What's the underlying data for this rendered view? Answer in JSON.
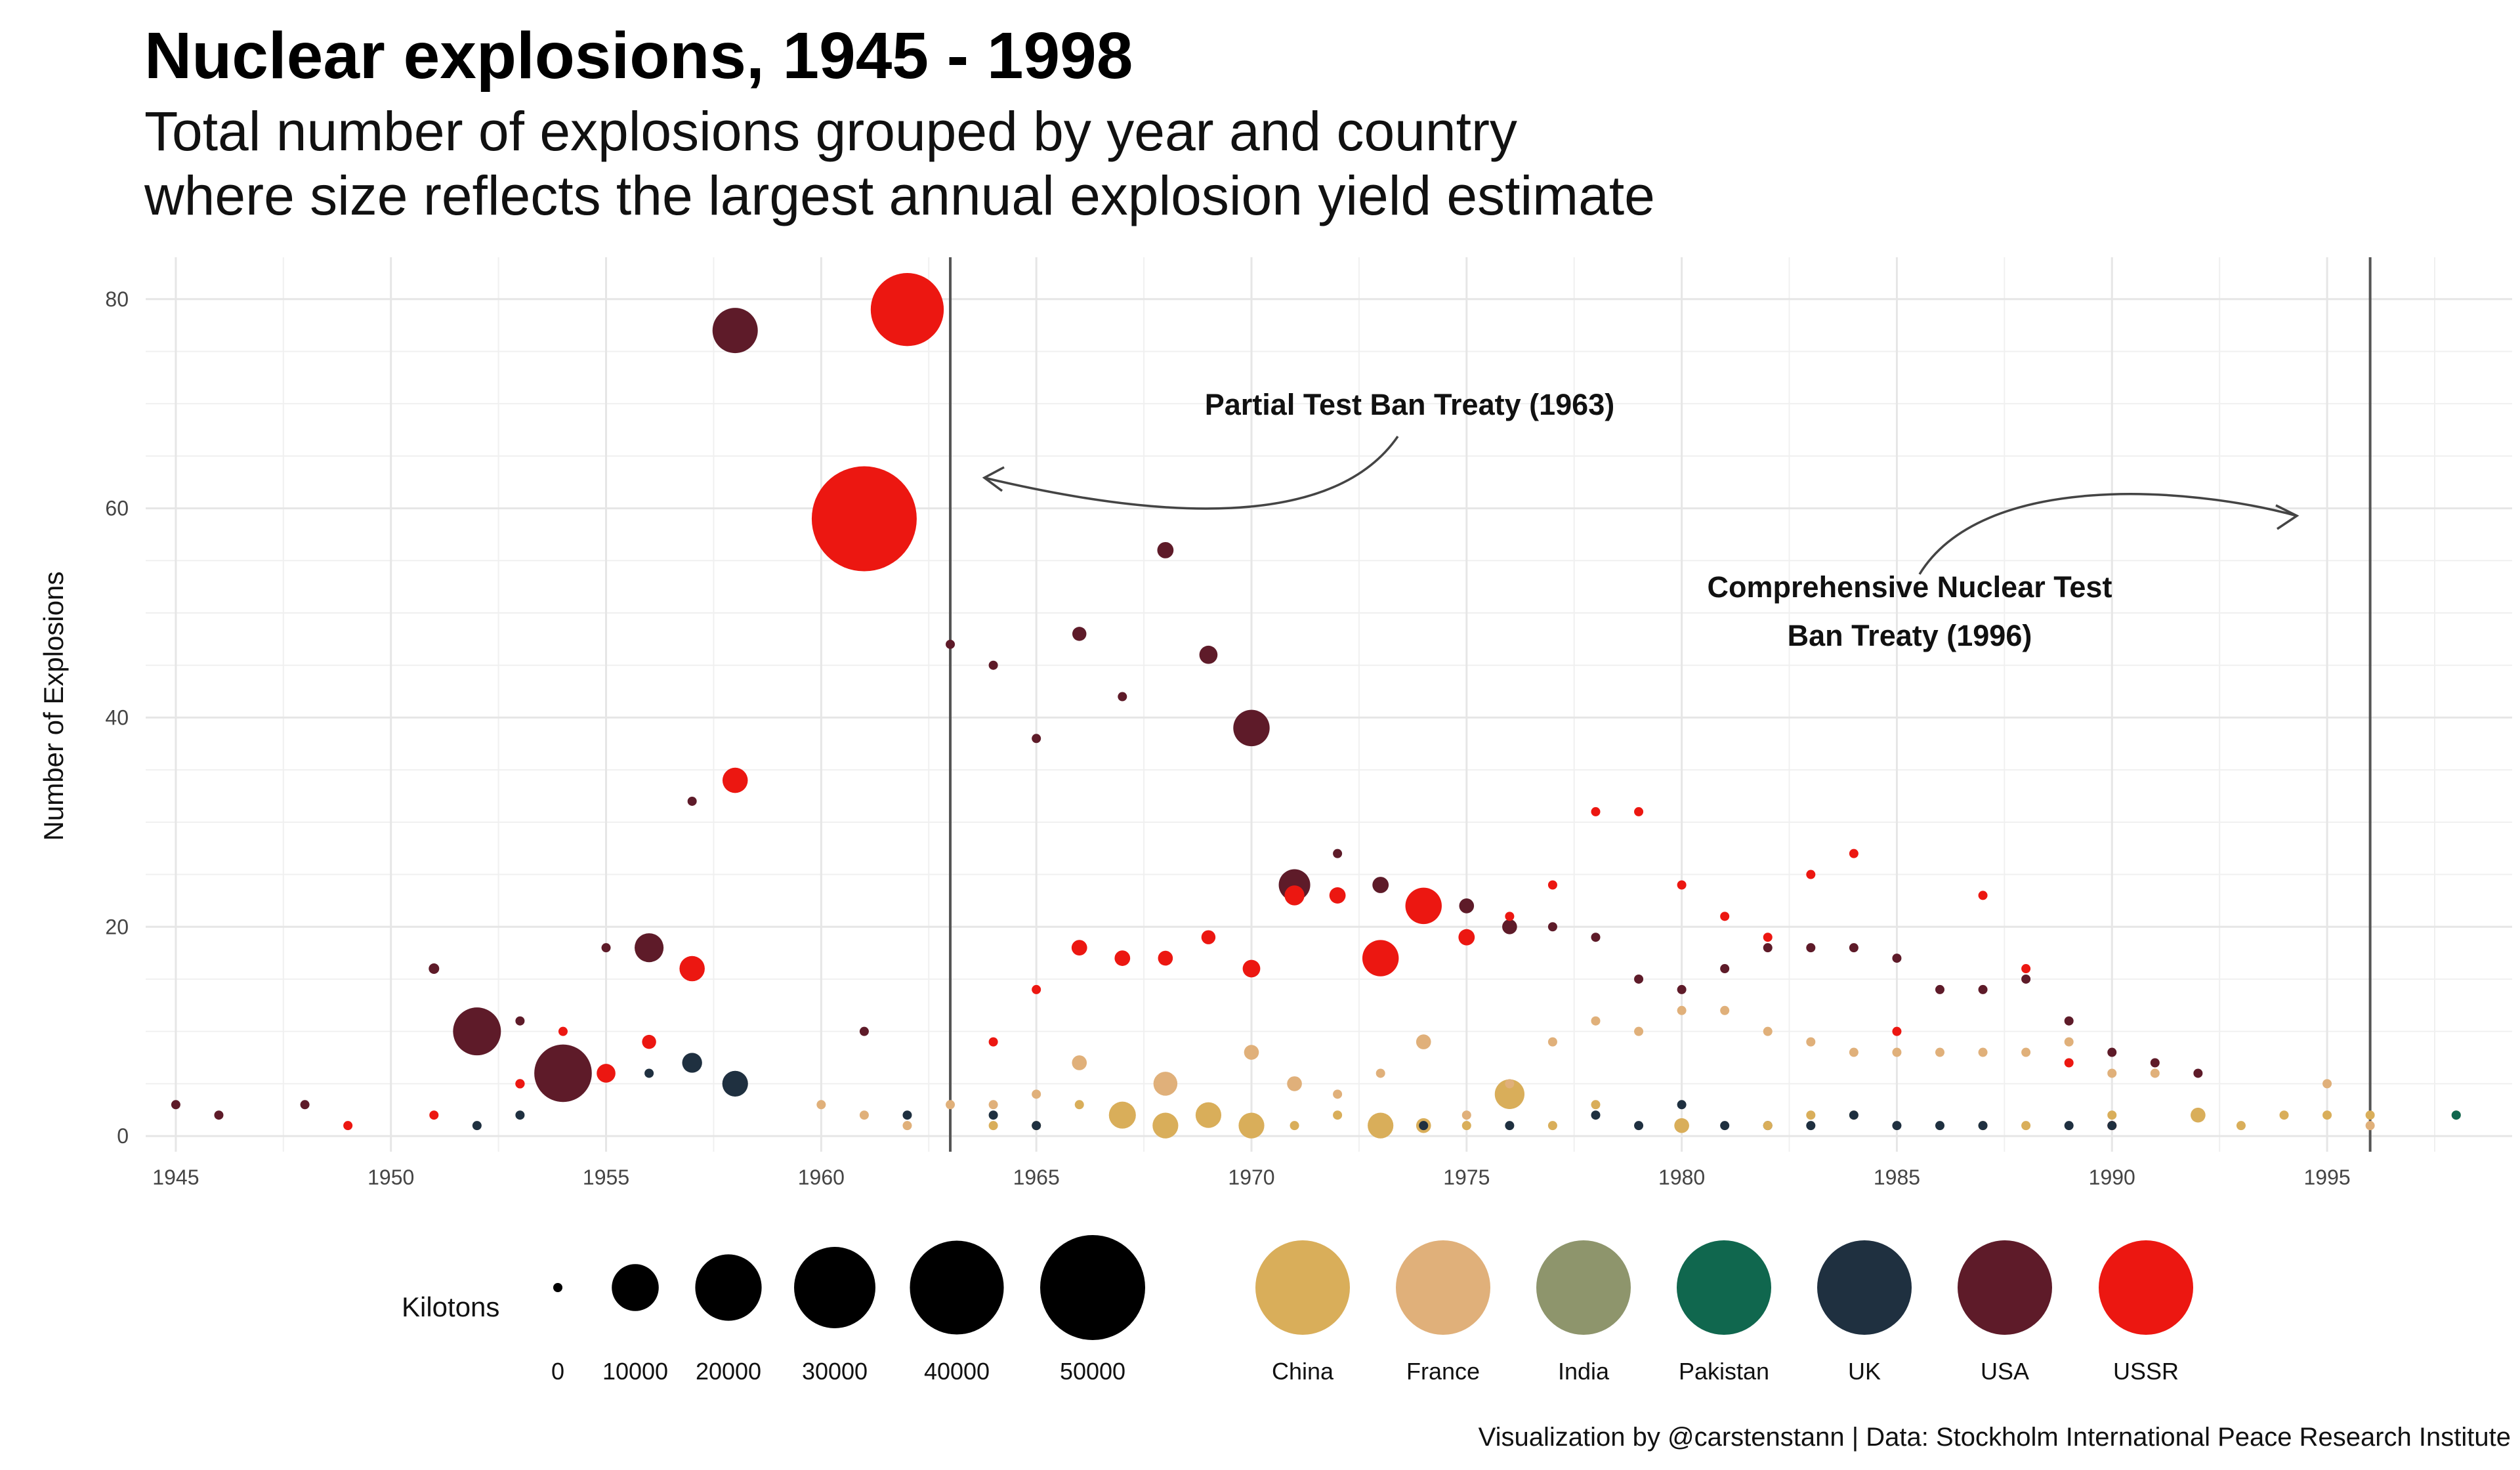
{
  "title": "Nuclear explosions, 1945 - 1998",
  "subtitle_line1": "Total number of explosions grouped by year and country",
  "subtitle_line2": "where size reflects the largest annual explosion yield estimate",
  "caption": "Visualization by @carstenstann | Data: Stockholm International Peace Research Institute",
  "chart_data": {
    "type": "scatter",
    "ylabel": "Number of Explosions",
    "xlabel": "",
    "xlim": [
      1944.3,
      1999.3
    ],
    "ylim": [
      -1.5,
      84
    ],
    "x_ticks": [
      1945,
      1950,
      1955,
      1960,
      1965,
      1970,
      1975,
      1980,
      1985,
      1990,
      1995
    ],
    "y_ticks": [
      0,
      20,
      40,
      60,
      80
    ],
    "grid": true,
    "size_legend_title": "Kilotons",
    "size_legend": [
      0,
      10000,
      20000,
      30000,
      40000,
      50000
    ],
    "color_legend": [
      {
        "name": "China",
        "color": "#D9AE5A"
      },
      {
        "name": "France",
        "color": "#E0B07A"
      },
      {
        "name": "India",
        "color": "#8E956C"
      },
      {
        "name": "Pakistan",
        "color": "#10674E"
      },
      {
        "name": "UK",
        "color": "#1F3040"
      },
      {
        "name": "USA",
        "color": "#5E1B29"
      },
      {
        "name": "USSR",
        "color": "#EC1711"
      }
    ],
    "treaty_lines": [
      {
        "year": 1963,
        "label": "Partial Test Ban Treaty (1963)"
      },
      {
        "year": 1996,
        "label_line1": "Comprehensive Nuclear Test",
        "label_line2": "Ban Treaty (1996)"
      }
    ],
    "points": [
      {
        "x": 1945,
        "y": 3,
        "c": "USA",
        "kt": 21
      },
      {
        "x": 1946,
        "y": 2,
        "c": "USA",
        "kt": 21
      },
      {
        "x": 1948,
        "y": 3,
        "c": "USA",
        "kt": 49
      },
      {
        "x": 1949,
        "y": 1,
        "c": "USSR",
        "kt": 22
      },
      {
        "x": 1951,
        "y": 16,
        "c": "USA",
        "kt": 500
      },
      {
        "x": 1951,
        "y": 2,
        "c": "USSR",
        "kt": 42
      },
      {
        "x": 1952,
        "y": 10,
        "c": "USA",
        "kt": 10400
      },
      {
        "x": 1952,
        "y": 1,
        "c": "UK",
        "kt": 25
      },
      {
        "x": 1953,
        "y": 11,
        "c": "USA",
        "kt": 61
      },
      {
        "x": 1953,
        "y": 5,
        "c": "USSR",
        "kt": 400
      },
      {
        "x": 1953,
        "y": 2,
        "c": "UK",
        "kt": 10
      },
      {
        "x": 1954,
        "y": 6,
        "c": "USA",
        "kt": 15000
      },
      {
        "x": 1954,
        "y": 10,
        "c": "USSR",
        "kt": 40
      },
      {
        "x": 1955,
        "y": 18,
        "c": "USA",
        "kt": 43
      },
      {
        "x": 1955,
        "y": 6,
        "c": "USSR",
        "kt": 1600
      },
      {
        "x": 1956,
        "y": 18,
        "c": "USA",
        "kt": 3800
      },
      {
        "x": 1956,
        "y": 9,
        "c": "USSR",
        "kt": 900
      },
      {
        "x": 1956,
        "y": 6,
        "c": "UK",
        "kt": 60
      },
      {
        "x": 1957,
        "y": 32,
        "c": "USA",
        "kt": 74
      },
      {
        "x": 1957,
        "y": 16,
        "c": "USSR",
        "kt": 2900
      },
      {
        "x": 1957,
        "y": 7,
        "c": "UK",
        "kt": 1800
      },
      {
        "x": 1958,
        "y": 77,
        "c": "USA",
        "kt": 9300
      },
      {
        "x": 1958,
        "y": 34,
        "c": "USSR",
        "kt": 2900
      },
      {
        "x": 1958,
        "y": 5,
        "c": "UK",
        "kt": 3000
      },
      {
        "x": 1960,
        "y": 3,
        "c": "France",
        "kt": 70
      },
      {
        "x": 1961,
        "y": 10,
        "c": "USA",
        "kt": 20
      },
      {
        "x": 1961,
        "y": 59,
        "c": "USSR",
        "kt": 50000
      },
      {
        "x": 1961,
        "y": 2,
        "c": "France",
        "kt": 10
      },
      {
        "x": 1962,
        "y": 79,
        "c": "USSR",
        "kt": 24200
      },
      {
        "x": 1962,
        "y": 1,
        "c": "France",
        "kt": 40
      },
      {
        "x": 1962,
        "y": 2,
        "c": "UK",
        "kt": 10
      },
      {
        "x": 1963,
        "y": 47,
        "c": "USA",
        "kt": 100
      },
      {
        "x": 1963,
        "y": 3,
        "c": "France",
        "kt": 40
      },
      {
        "x": 1964,
        "y": 45,
        "c": "USA",
        "kt": 100
      },
      {
        "x": 1964,
        "y": 9,
        "c": "USSR",
        "kt": 150
      },
      {
        "x": 1964,
        "y": 2,
        "c": "UK",
        "kt": 10
      },
      {
        "x": 1964,
        "y": 3,
        "c": "France",
        "kt": 20
      },
      {
        "x": 1964,
        "y": 1,
        "c": "China",
        "kt": 22
      },
      {
        "x": 1965,
        "y": 38,
        "c": "USA",
        "kt": 150
      },
      {
        "x": 1965,
        "y": 14,
        "c": "USSR",
        "kt": 140
      },
      {
        "x": 1965,
        "y": 4,
        "c": "France",
        "kt": 100
      },
      {
        "x": 1965,
        "y": 1,
        "c": "China",
        "kt": 35
      },
      {
        "x": 1965,
        "y": 1,
        "c": "UK",
        "kt": 10
      },
      {
        "x": 1966,
        "y": 48,
        "c": "USA",
        "kt": 900
      },
      {
        "x": 1966,
        "y": 18,
        "c": "USSR",
        "kt": 1100
      },
      {
        "x": 1966,
        "y": 7,
        "c": "France",
        "kt": 1000
      },
      {
        "x": 1966,
        "y": 3,
        "c": "China",
        "kt": 300
      },
      {
        "x": 1967,
        "y": 42,
        "c": "USA",
        "kt": 200
      },
      {
        "x": 1967,
        "y": 17,
        "c": "USSR",
        "kt": 1100
      },
      {
        "x": 1967,
        "y": 2,
        "c": "China",
        "kt": 3300
      },
      {
        "x": 1968,
        "y": 56,
        "c": "USA",
        "kt": 1200
      },
      {
        "x": 1968,
        "y": 17,
        "c": "USSR",
        "kt": 1000
      },
      {
        "x": 1968,
        "y": 5,
        "c": "France",
        "kt": 2600
      },
      {
        "x": 1968,
        "y": 1,
        "c": "China",
        "kt": 3000
      },
      {
        "x": 1969,
        "y": 46,
        "c": "USA",
        "kt": 1500
      },
      {
        "x": 1969,
        "y": 19,
        "c": "USSR",
        "kt": 900
      },
      {
        "x": 1969,
        "y": 2,
        "c": "China",
        "kt": 3000
      },
      {
        "x": 1970,
        "y": 39,
        "c": "USA",
        "kt": 6000
      },
      {
        "x": 1970,
        "y": 16,
        "c": "USSR",
        "kt": 1400
      },
      {
        "x": 1970,
        "y": 8,
        "c": "France",
        "kt": 1000
      },
      {
        "x": 1970,
        "y": 1,
        "c": "China",
        "kt": 3000
      },
      {
        "x": 1971,
        "y": 24,
        "c": "USA",
        "kt": 4500
      },
      {
        "x": 1971,
        "y": 23,
        "c": "USSR",
        "kt": 1800
      },
      {
        "x": 1971,
        "y": 5,
        "c": "France",
        "kt": 1000
      },
      {
        "x": 1971,
        "y": 1,
        "c": "China",
        "kt": 20
      },
      {
        "x": 1972,
        "y": 27,
        "c": "USA",
        "kt": 200
      },
      {
        "x": 1972,
        "y": 23,
        "c": "USSR",
        "kt": 1200
      },
      {
        "x": 1972,
        "y": 4,
        "c": "France",
        "kt": 40
      },
      {
        "x": 1972,
        "y": 2,
        "c": "China",
        "kt": 200
      },
      {
        "x": 1973,
        "y": 24,
        "c": "USA",
        "kt": 1200
      },
      {
        "x": 1973,
        "y": 17,
        "c": "USSR",
        "kt": 6000
      },
      {
        "x": 1973,
        "y": 6,
        "c": "France",
        "kt": 10
      },
      {
        "x": 1973,
        "y": 1,
        "c": "China",
        "kt": 3000
      },
      {
        "x": 1974,
        "y": 22,
        "c": "USSR",
        "kt": 6000
      },
      {
        "x": 1974,
        "y": 9,
        "c": "France",
        "kt": 1000
      },
      {
        "x": 1974,
        "y": 1,
        "c": "China",
        "kt": 1000
      },
      {
        "x": 1974,
        "y": 1,
        "c": "India",
        "kt": 12
      },
      {
        "x": 1974,
        "y": 1,
        "c": "UK",
        "kt": 10
      },
      {
        "x": 1975,
        "y": 22,
        "c": "USA",
        "kt": 1000
      },
      {
        "x": 1975,
        "y": 19,
        "c": "USSR",
        "kt": 1200
      },
      {
        "x": 1975,
        "y": 2,
        "c": "France",
        "kt": 20
      },
      {
        "x": 1975,
        "y": 1,
        "c": "China",
        "kt": 20
      },
      {
        "x": 1976,
        "y": 20,
        "c": "USA",
        "kt": 1000
      },
      {
        "x": 1976,
        "y": 21,
        "c": "USSR",
        "kt": 20
      },
      {
        "x": 1976,
        "y": 5,
        "c": "France",
        "kt": 20
      },
      {
        "x": 1976,
        "y": 4,
        "c": "China",
        "kt": 4000
      },
      {
        "x": 1976,
        "y": 1,
        "c": "UK",
        "kt": 150
      },
      {
        "x": 1977,
        "y": 20,
        "c": "USA",
        "kt": 20
      },
      {
        "x": 1977,
        "y": 24,
        "c": "USSR",
        "kt": 150
      },
      {
        "x": 1977,
        "y": 9,
        "c": "France",
        "kt": 150
      },
      {
        "x": 1977,
        "y": 1,
        "c": "China",
        "kt": 20
      },
      {
        "x": 1978,
        "y": 19,
        "c": "USA",
        "kt": 150
      },
      {
        "x": 1978,
        "y": 31,
        "c": "USSR",
        "kt": 20
      },
      {
        "x": 1978,
        "y": 11,
        "c": "France",
        "kt": 150
      },
      {
        "x": 1978,
        "y": 3,
        "c": "China",
        "kt": 20
      },
      {
        "x": 1978,
        "y": 2,
        "c": "UK",
        "kt": 150
      },
      {
        "x": 1979,
        "y": 15,
        "c": "USA",
        "kt": 150
      },
      {
        "x": 1979,
        "y": 31,
        "c": "USSR",
        "kt": 150
      },
      {
        "x": 1979,
        "y": 10,
        "c": "France",
        "kt": 150
      },
      {
        "x": 1979,
        "y": 1,
        "c": "UK",
        "kt": 150
      },
      {
        "x": 1980,
        "y": 14,
        "c": "USA",
        "kt": 150
      },
      {
        "x": 1980,
        "y": 24,
        "c": "USSR",
        "kt": 150
      },
      {
        "x": 1980,
        "y": 12,
        "c": "France",
        "kt": 150
      },
      {
        "x": 1980,
        "y": 1,
        "c": "China",
        "kt": 1000
      },
      {
        "x": 1980,
        "y": 3,
        "c": "UK",
        "kt": 150
      },
      {
        "x": 1981,
        "y": 16,
        "c": "USA",
        "kt": 150
      },
      {
        "x": 1981,
        "y": 21,
        "c": "USSR",
        "kt": 150
      },
      {
        "x": 1981,
        "y": 12,
        "c": "France",
        "kt": 150
      },
      {
        "x": 1981,
        "y": 1,
        "c": "UK",
        "kt": 150
      },
      {
        "x": 1982,
        "y": 18,
        "c": "USA",
        "kt": 150
      },
      {
        "x": 1982,
        "y": 19,
        "c": "USSR",
        "kt": 150
      },
      {
        "x": 1982,
        "y": 10,
        "c": "France",
        "kt": 150
      },
      {
        "x": 1982,
        "y": 1,
        "c": "China",
        "kt": 20
      },
      {
        "x": 1982,
        "y": 1,
        "c": "UK",
        "kt": 150
      },
      {
        "x": 1983,
        "y": 18,
        "c": "USA",
        "kt": 150
      },
      {
        "x": 1983,
        "y": 25,
        "c": "USSR",
        "kt": 150
      },
      {
        "x": 1983,
        "y": 9,
        "c": "France",
        "kt": 150
      },
      {
        "x": 1983,
        "y": 2,
        "c": "China",
        "kt": 150
      },
      {
        "x": 1983,
        "y": 1,
        "c": "UK",
        "kt": 150
      },
      {
        "x": 1984,
        "y": 18,
        "c": "USA",
        "kt": 150
      },
      {
        "x": 1984,
        "y": 27,
        "c": "USSR",
        "kt": 150
      },
      {
        "x": 1984,
        "y": 8,
        "c": "France",
        "kt": 150
      },
      {
        "x": 1984,
        "y": 2,
        "c": "China",
        "kt": 150
      },
      {
        "x": 1984,
        "y": 2,
        "c": "UK",
        "kt": 150
      },
      {
        "x": 1985,
        "y": 17,
        "c": "USA",
        "kt": 150
      },
      {
        "x": 1985,
        "y": 10,
        "c": "USSR",
        "kt": 150
      },
      {
        "x": 1985,
        "y": 8,
        "c": "France",
        "kt": 150
      },
      {
        "x": 1985,
        "y": 1,
        "c": "UK",
        "kt": 150
      },
      {
        "x": 1986,
        "y": 14,
        "c": "USA",
        "kt": 150
      },
      {
        "x": 1986,
        "y": 8,
        "c": "France",
        "kt": 150
      },
      {
        "x": 1986,
        "y": 1,
        "c": "UK",
        "kt": 150
      },
      {
        "x": 1987,
        "y": 14,
        "c": "USA",
        "kt": 150
      },
      {
        "x": 1987,
        "y": 23,
        "c": "USSR",
        "kt": 150
      },
      {
        "x": 1987,
        "y": 8,
        "c": "France",
        "kt": 150
      },
      {
        "x": 1987,
        "y": 1,
        "c": "China",
        "kt": 150
      },
      {
        "x": 1987,
        "y": 1,
        "c": "UK",
        "kt": 150
      },
      {
        "x": 1988,
        "y": 15,
        "c": "USA",
        "kt": 150
      },
      {
        "x": 1988,
        "y": 16,
        "c": "USSR",
        "kt": 150
      },
      {
        "x": 1988,
        "y": 8,
        "c": "France",
        "kt": 150
      },
      {
        "x": 1988,
        "y": 1,
        "c": "China",
        "kt": 150
      },
      {
        "x": 1989,
        "y": 11,
        "c": "USA",
        "kt": 150
      },
      {
        "x": 1989,
        "y": 7,
        "c": "USSR",
        "kt": 150
      },
      {
        "x": 1989,
        "y": 9,
        "c": "France",
        "kt": 150
      },
      {
        "x": 1989,
        "y": 1,
        "c": "UK",
        "kt": 150
      },
      {
        "x": 1990,
        "y": 8,
        "c": "USA",
        "kt": 150
      },
      {
        "x": 1990,
        "y": 1,
        "c": "USSR",
        "kt": 150
      },
      {
        "x": 1990,
        "y": 6,
        "c": "France",
        "kt": 150
      },
      {
        "x": 1990,
        "y": 2,
        "c": "China",
        "kt": 150
      },
      {
        "x": 1990,
        "y": 1,
        "c": "UK",
        "kt": 150
      },
      {
        "x": 1991,
        "y": 7,
        "c": "USA",
        "kt": 150
      },
      {
        "x": 1991,
        "y": 6,
        "c": "France",
        "kt": 150
      },
      {
        "x": 1992,
        "y": 6,
        "c": "USA",
        "kt": 150
      },
      {
        "x": 1992,
        "y": 2,
        "c": "China",
        "kt": 1000
      },
      {
        "x": 1993,
        "y": 1,
        "c": "China",
        "kt": 150
      },
      {
        "x": 1994,
        "y": 2,
        "c": "China",
        "kt": 150
      },
      {
        "x": 1995,
        "y": 2,
        "c": "China",
        "kt": 150
      },
      {
        "x": 1995,
        "y": 5,
        "c": "France",
        "kt": 150
      },
      {
        "x": 1996,
        "y": 2,
        "c": "China",
        "kt": 150
      },
      {
        "x": 1996,
        "y": 1,
        "c": "France",
        "kt": 120
      },
      {
        "x": 1998,
        "y": 2,
        "c": "Pakistan",
        "kt": 40
      },
      {
        "x": 1998,
        "y": 2,
        "c": "India",
        "kt": 45
      }
    ]
  }
}
